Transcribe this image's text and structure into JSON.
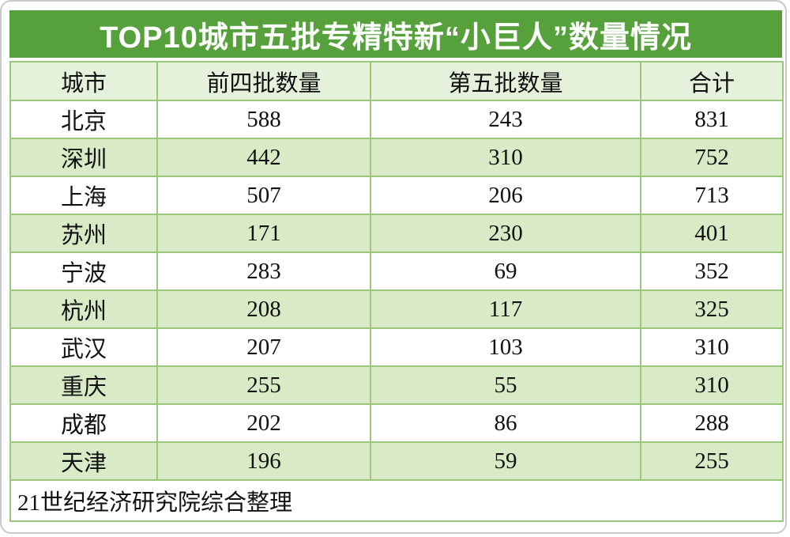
{
  "chart_data": {
    "type": "table",
    "title": "TOP10城市五批专精特新“小巨人”数量情况",
    "columns": [
      "城市",
      "前四批数量",
      "第五批数量",
      "合计"
    ],
    "rows": [
      [
        "北京",
        "588",
        "243",
        "831"
      ],
      [
        "深圳",
        "442",
        "310",
        "752"
      ],
      [
        "上海",
        "507",
        "206",
        "713"
      ],
      [
        "苏州",
        "171",
        "230",
        "401"
      ],
      [
        "宁波",
        "283",
        "69",
        "352"
      ],
      [
        "杭州",
        "208",
        "117",
        "325"
      ],
      [
        "武汉",
        "207",
        "103",
        "310"
      ],
      [
        "重庆",
        "255",
        "55",
        "310"
      ],
      [
        "成都",
        "202",
        "86",
        "288"
      ],
      [
        "天津",
        "196",
        "59",
        "255"
      ]
    ],
    "source_note": "21世纪经济研究院综合整理",
    "layout": {
      "row_striping": "white / light-green alternating, starting white",
      "alignment": "all cells centered, source note left-aligned"
    }
  },
  "colors": {
    "title_bg": "#57A13D",
    "title_text": "#FFFFFF",
    "grid_border": "#9CC77C",
    "header_bg": "#E6F1DC",
    "row_alt_bg": "#D9EBC6",
    "row_bg": "#FFFFFF",
    "body_text": "#111111",
    "outer_frame": "#C9C9C9"
  }
}
